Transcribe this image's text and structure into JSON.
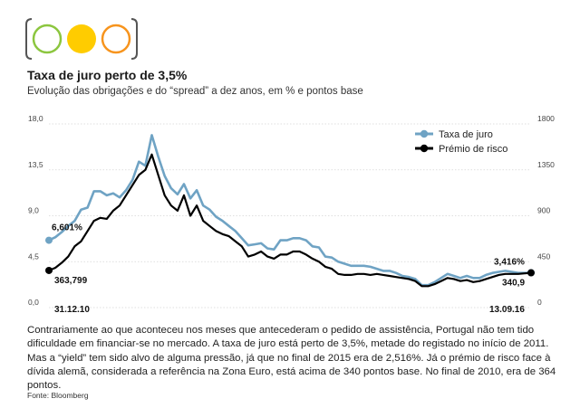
{
  "header": {
    "title": "Taxa de juro perto de 3,5%",
    "subtitle": "Evolução das obrigações e do “spread” a dez anos, em % e pontos base"
  },
  "logo": {
    "icon": "traffic-light-circles-icon",
    "colors": [
      "#8cc63f",
      "#ffcc00",
      "#f7941d"
    ]
  },
  "chart_data": {
    "type": "line",
    "title": "",
    "xlabel": "",
    "ylabel": "",
    "left_axis": {
      "ticks": [
        "18,0",
        "13,5",
        "9,0",
        "4,5",
        "0,0"
      ],
      "values": [
        18,
        13.5,
        9,
        4.5,
        0
      ],
      "ylim": [
        0,
        18
      ]
    },
    "right_axis": {
      "ticks": [
        "1800",
        "1350",
        "900",
        "450",
        "0"
      ],
      "values": [
        1800,
        1350,
        900,
        450,
        0
      ],
      "ylim": [
        0,
        1800
      ]
    },
    "x_labels": [
      "31.12.10",
      "13.09.16"
    ],
    "grid": true,
    "legend_position": "top-right",
    "series": [
      {
        "name": "Taxa de juro",
        "axis": "left",
        "color": "#6fa3c4",
        "values": [
          6.6,
          6.9,
          7.4,
          8.0,
          8.5,
          9.6,
          9.8,
          11.4,
          11.4,
          11.0,
          11.2,
          10.8,
          11.5,
          12.5,
          14.3,
          13.9,
          16.9,
          14.8,
          12.9,
          11.7,
          11.1,
          12.1,
          10.7,
          11.5,
          10.0,
          9.6,
          8.9,
          8.5,
          8.0,
          7.5,
          6.8,
          6.1,
          6.2,
          6.3,
          5.8,
          5.7,
          6.6,
          6.6,
          6.8,
          6.8,
          6.6,
          6.0,
          5.9,
          5.0,
          4.9,
          4.5,
          4.3,
          4.1,
          4.1,
          4.1,
          4.0,
          3.8,
          3.6,
          3.6,
          3.4,
          3.1,
          3.0,
          2.8,
          2.2,
          2.2,
          2.5,
          2.9,
          3.3,
          3.1,
          2.9,
          3.1,
          2.9,
          2.9,
          3.2,
          3.4,
          3.5,
          3.6,
          3.5,
          3.4,
          3.4,
          3.416
        ]
      },
      {
        "name": "Prémio de risco",
        "axis": "right",
        "color": "#000000",
        "values": [
          363.8,
          390,
          440,
          500,
          600,
          650,
          750,
          850,
          880,
          870,
          950,
          1000,
          1100,
          1200,
          1300,
          1350,
          1500,
          1300,
          1100,
          1000,
          950,
          1100,
          900,
          1000,
          850,
          800,
          750,
          720,
          700,
          650,
          600,
          500,
          520,
          550,
          500,
          480,
          520,
          520,
          550,
          550,
          520,
          480,
          450,
          400,
          380,
          330,
          320,
          320,
          330,
          330,
          320,
          330,
          320,
          310,
          300,
          290,
          280,
          260,
          210,
          210,
          230,
          260,
          290,
          280,
          260,
          270,
          250,
          260,
          280,
          300,
          320,
          330,
          330,
          330,
          335,
          340.9
        ]
      }
    ],
    "annotations": [
      {
        "text": "6,601%",
        "target": "start"
      },
      {
        "text": "363,799",
        "target": "start"
      },
      {
        "text": "3,416%",
        "target": "end"
      },
      {
        "text": "340,9",
        "target": "end"
      }
    ]
  },
  "body_text": "Contrariamente ao que aconteceu nos meses que antecederam o pedido de assistência, Portugal não tem tido dificuldade em financiar-se no mercado. A taxa de juro está perto de 3,5%, metade do registado no início de 2011. Mas a “yield” tem sido alvo de alguma pressão, já que no final de 2015 era de 2,516%. Já o prémio de risco face à dívida alemã, considerada a referência na Zona Euro, está acima de 340 pontos base. No final de 2010, era de 364 pontos.",
  "source": "Fonte: Bloomberg"
}
